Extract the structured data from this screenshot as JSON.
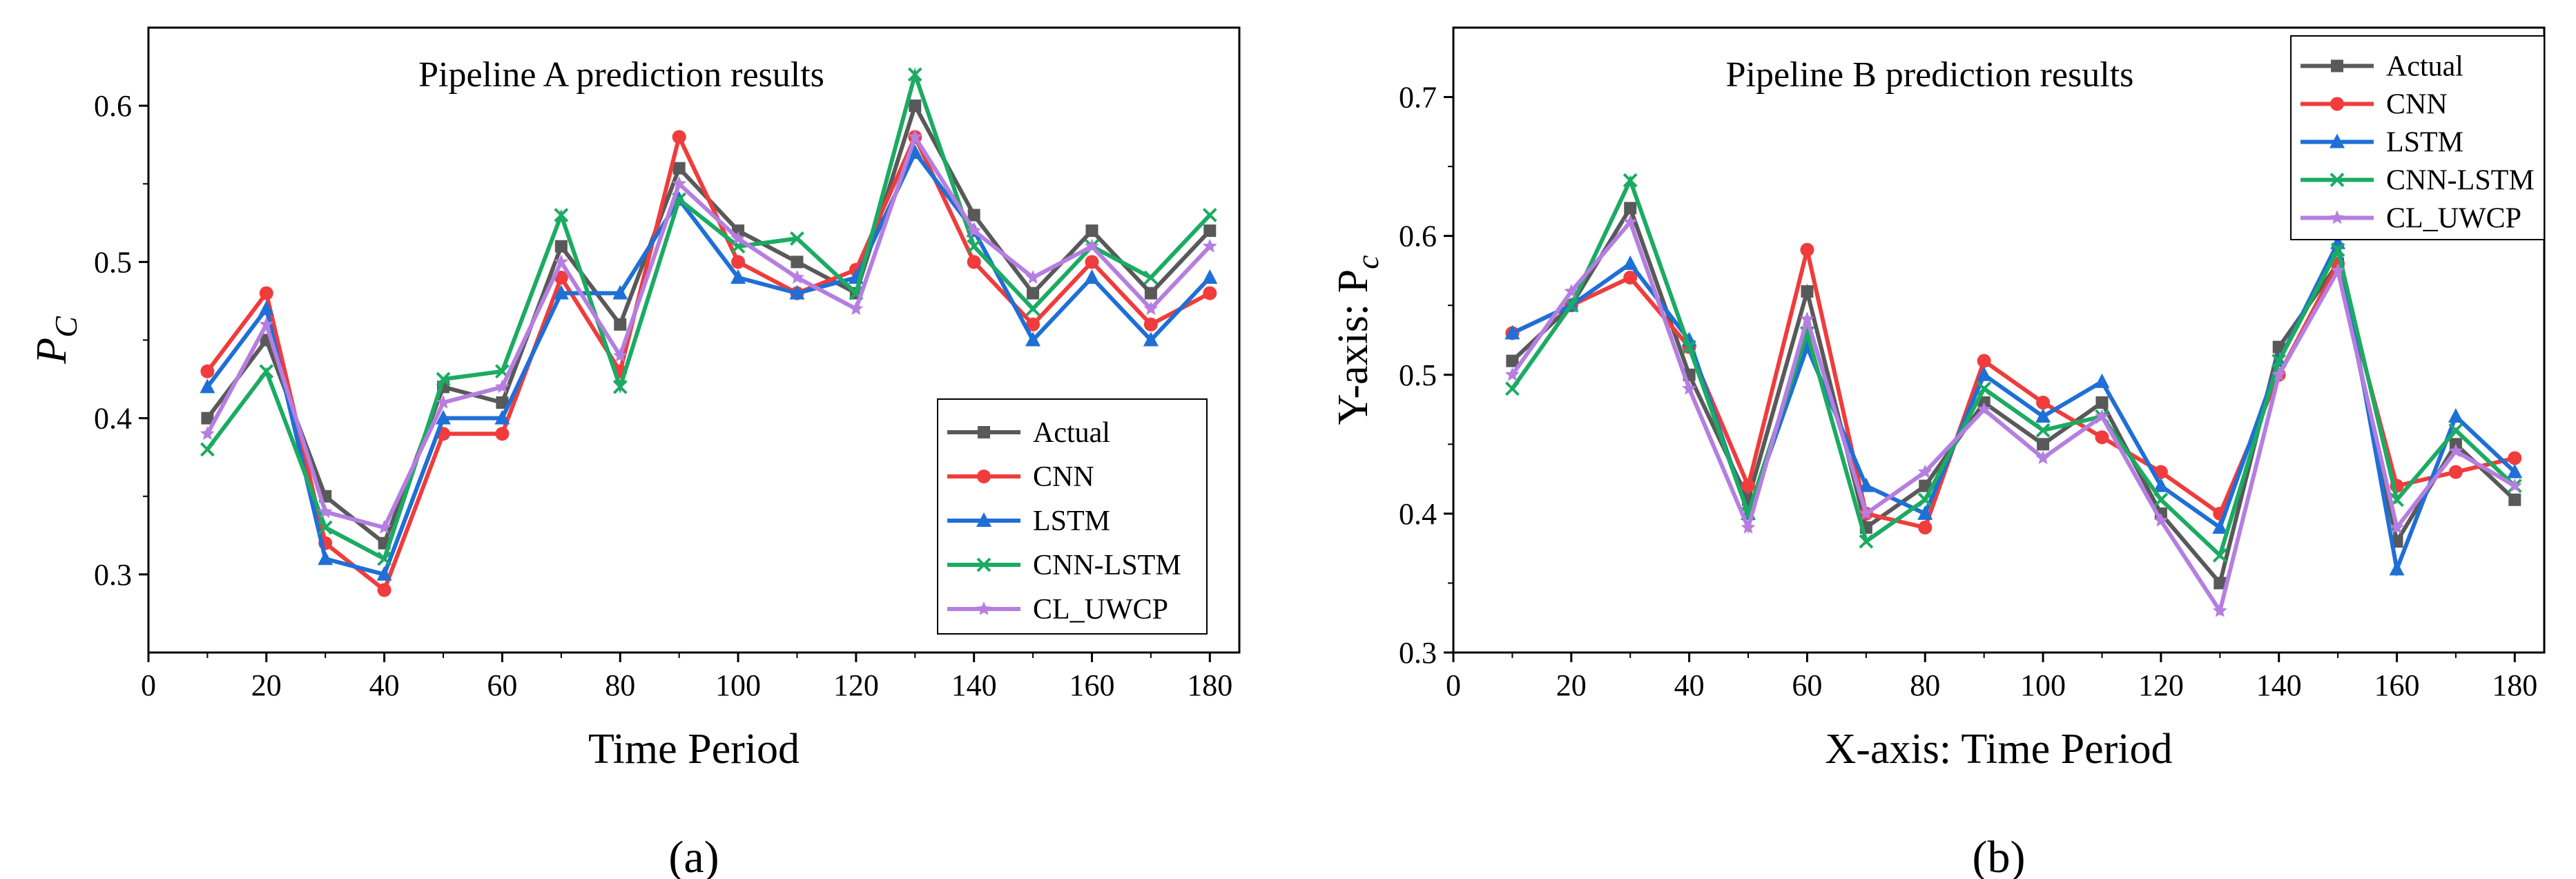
{
  "series_styles": [
    {
      "name": "Actual",
      "color": "#595959",
      "marker": "square"
    },
    {
      "name": "CNN",
      "color": "#f03c3c",
      "marker": "circle"
    },
    {
      "name": "LSTM",
      "color": "#1f6fd6",
      "marker": "triangle"
    },
    {
      "name": "CNN-LSTM",
      "color": "#1bab62",
      "marker": "x"
    },
    {
      "name": "CL_UWCP",
      "color": "#b57ee0",
      "marker": "star"
    }
  ],
  "chart_data": [
    {
      "type": "line",
      "title": "Pipeline A prediction results",
      "xlabel": "Time Period",
      "ylabel_main": "P",
      "ylabel_sub": "C",
      "panel_label": "(a)",
      "xlim": [
        0,
        185
      ],
      "ylim": [
        0.25,
        0.65
      ],
      "xticks": [
        0,
        20,
        40,
        60,
        80,
        100,
        120,
        140,
        160,
        180
      ],
      "yticks": [
        0.3,
        0.4,
        0.5,
        0.6
      ],
      "legend_position": "bottom-right",
      "x": [
        10,
        20,
        30,
        40,
        50,
        60,
        70,
        80,
        90,
        100,
        110,
        120,
        130,
        140,
        150,
        160,
        170,
        180
      ],
      "series": [
        {
          "name": "Actual",
          "values": [
            0.4,
            0.45,
            0.35,
            0.32,
            0.42,
            0.41,
            0.51,
            0.46,
            0.56,
            0.52,
            0.5,
            0.48,
            0.6,
            0.53,
            0.48,
            0.52,
            0.48,
            0.52
          ]
        },
        {
          "name": "CNN",
          "values": [
            0.43,
            0.48,
            0.32,
            0.29,
            0.39,
            0.39,
            0.49,
            0.43,
            0.58,
            0.5,
            0.48,
            0.495,
            0.58,
            0.5,
            0.46,
            0.5,
            0.46,
            0.48
          ]
        },
        {
          "name": "LSTM",
          "values": [
            0.42,
            0.47,
            0.31,
            0.3,
            0.4,
            0.4,
            0.48,
            0.48,
            0.54,
            0.49,
            0.48,
            0.49,
            0.57,
            0.52,
            0.45,
            0.49,
            0.45,
            0.49
          ]
        },
        {
          "name": "CNN-LSTM",
          "values": [
            0.38,
            0.43,
            0.33,
            0.31,
            0.425,
            0.43,
            0.53,
            0.42,
            0.54,
            0.51,
            0.515,
            0.48,
            0.62,
            0.51,
            0.47,
            0.51,
            0.49,
            0.53
          ]
        },
        {
          "name": "CL_UWCP",
          "values": [
            0.39,
            0.46,
            0.34,
            0.33,
            0.41,
            0.42,
            0.5,
            0.44,
            0.55,
            0.515,
            0.49,
            0.47,
            0.58,
            0.52,
            0.49,
            0.51,
            0.47,
            0.51
          ]
        }
      ]
    },
    {
      "type": "line",
      "title": "Pipeline B prediction results",
      "xlabel": "X-axis: Time Period",
      "ylabel_main": "Y-axis: P",
      "ylabel_sub": "c",
      "panel_label": "(b)",
      "xlim": [
        0,
        185
      ],
      "ylim": [
        0.3,
        0.75
      ],
      "xticks": [
        0,
        20,
        40,
        60,
        80,
        100,
        120,
        140,
        160,
        180
      ],
      "yticks": [
        0.3,
        0.4,
        0.5,
        0.6,
        0.7
      ],
      "legend_position": "top-right",
      "x": [
        10,
        20,
        30,
        40,
        50,
        60,
        70,
        80,
        90,
        100,
        110,
        120,
        130,
        140,
        150,
        160,
        170,
        180
      ],
      "series": [
        {
          "name": "Actual",
          "values": [
            0.51,
            0.55,
            0.62,
            0.5,
            0.41,
            0.56,
            0.39,
            0.42,
            0.48,
            0.45,
            0.48,
            0.4,
            0.35,
            0.52,
            0.58,
            0.38,
            0.45,
            0.41
          ]
        },
        {
          "name": "CNN",
          "values": [
            0.53,
            0.55,
            0.57,
            0.52,
            0.42,
            0.59,
            0.4,
            0.39,
            0.51,
            0.48,
            0.455,
            0.43,
            0.4,
            0.5,
            0.58,
            0.42,
            0.43,
            0.44
          ]
        },
        {
          "name": "LSTM",
          "values": [
            0.53,
            0.55,
            0.58,
            0.525,
            0.4,
            0.52,
            0.42,
            0.4,
            0.5,
            0.47,
            0.495,
            0.42,
            0.39,
            0.51,
            0.595,
            0.36,
            0.47,
            0.43
          ]
        },
        {
          "name": "CNN-LSTM",
          "values": [
            0.49,
            0.55,
            0.64,
            0.52,
            0.4,
            0.53,
            0.38,
            0.41,
            0.49,
            0.46,
            0.47,
            0.41,
            0.37,
            0.51,
            0.59,
            0.41,
            0.46,
            0.42
          ]
        },
        {
          "name": "CL_UWCP",
          "values": [
            0.5,
            0.56,
            0.61,
            0.49,
            0.39,
            0.54,
            0.4,
            0.43,
            0.475,
            0.44,
            0.47,
            0.395,
            0.33,
            0.5,
            0.575,
            0.39,
            0.445,
            0.42
          ]
        }
      ]
    }
  ]
}
